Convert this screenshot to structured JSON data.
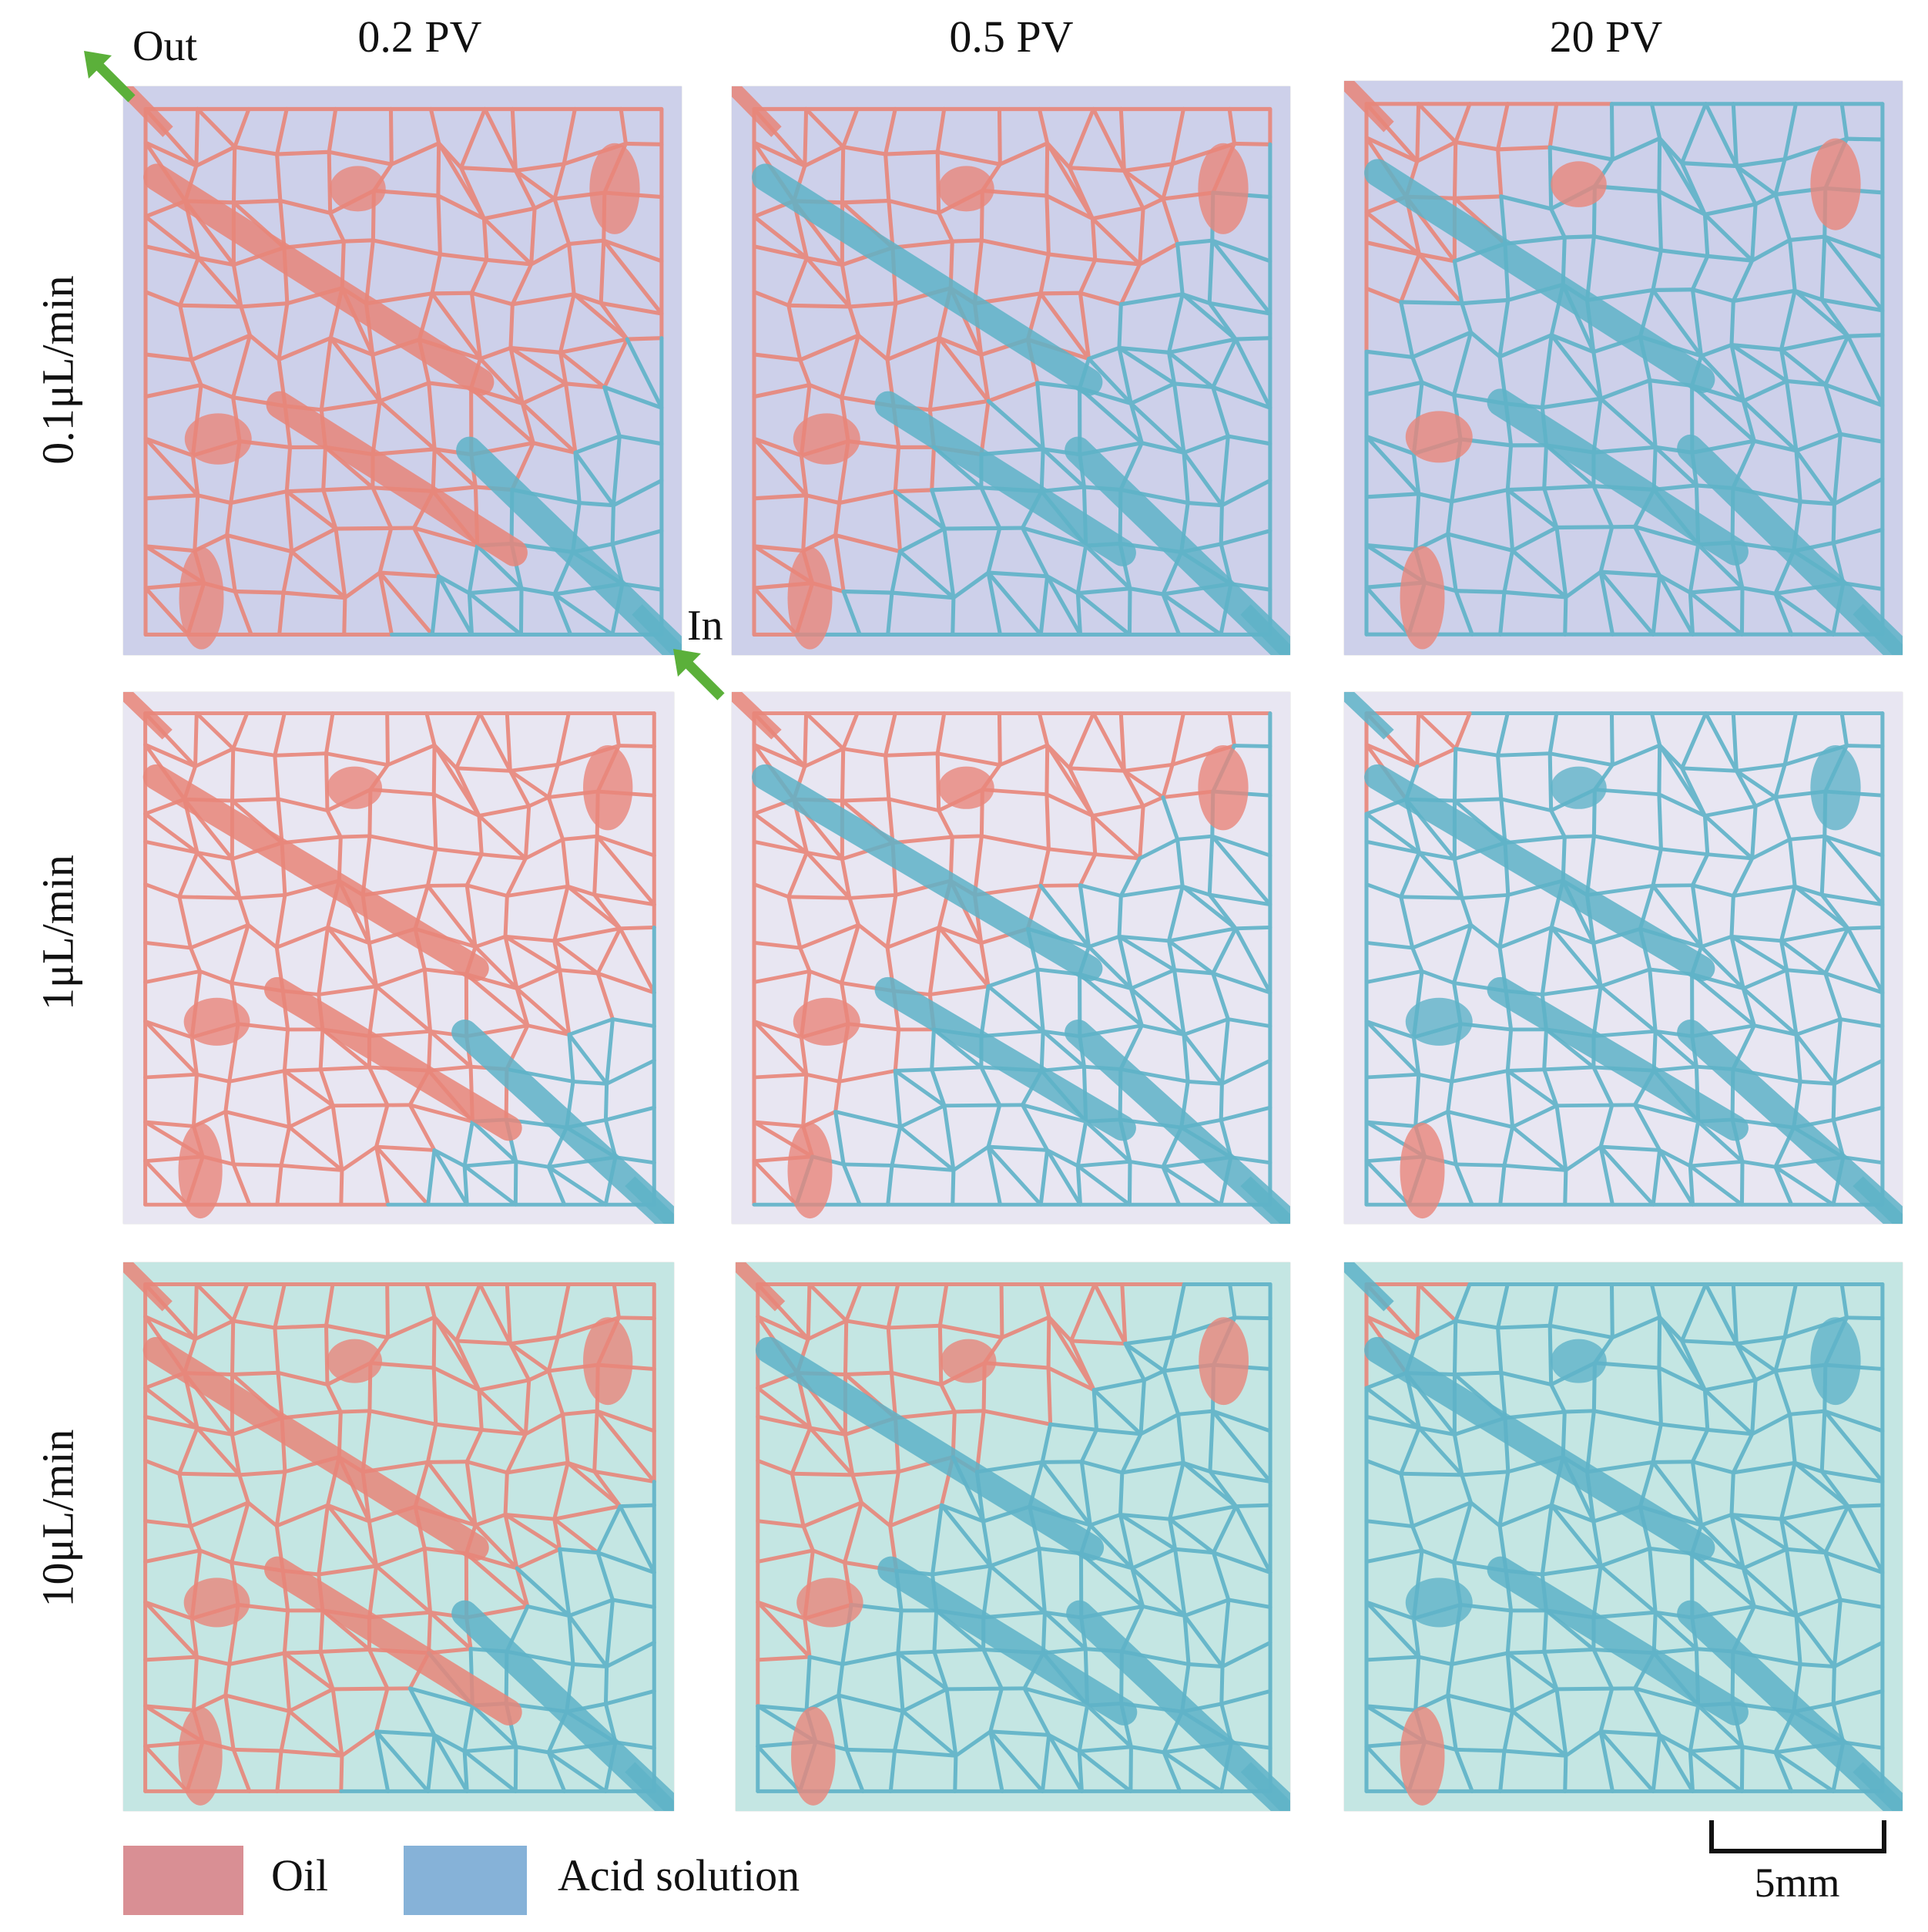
{
  "figure": {
    "columns": [
      "0.2 PV",
      "0.5 PV",
      "20 PV"
    ],
    "rows": [
      "0.1μL/min",
      "1μL/min",
      "10μL/min"
    ],
    "annotations": {
      "outlet_label": "Out",
      "inlet_label": "In",
      "arrow_color": "#5bb03a"
    },
    "legend": [
      {
        "label": "Oil",
        "color": "#d98f94"
      },
      {
        "label": "Acid solution",
        "color": "#86b2d8"
      }
    ],
    "scale_bar": {
      "label": "5mm"
    },
    "colors": {
      "oil": "#e8867a",
      "acid": "#5fb3c8",
      "row_backgrounds": [
        "#cdd0ea",
        "#e8e6f2",
        "#c4e6e3"
      ]
    }
  }
}
